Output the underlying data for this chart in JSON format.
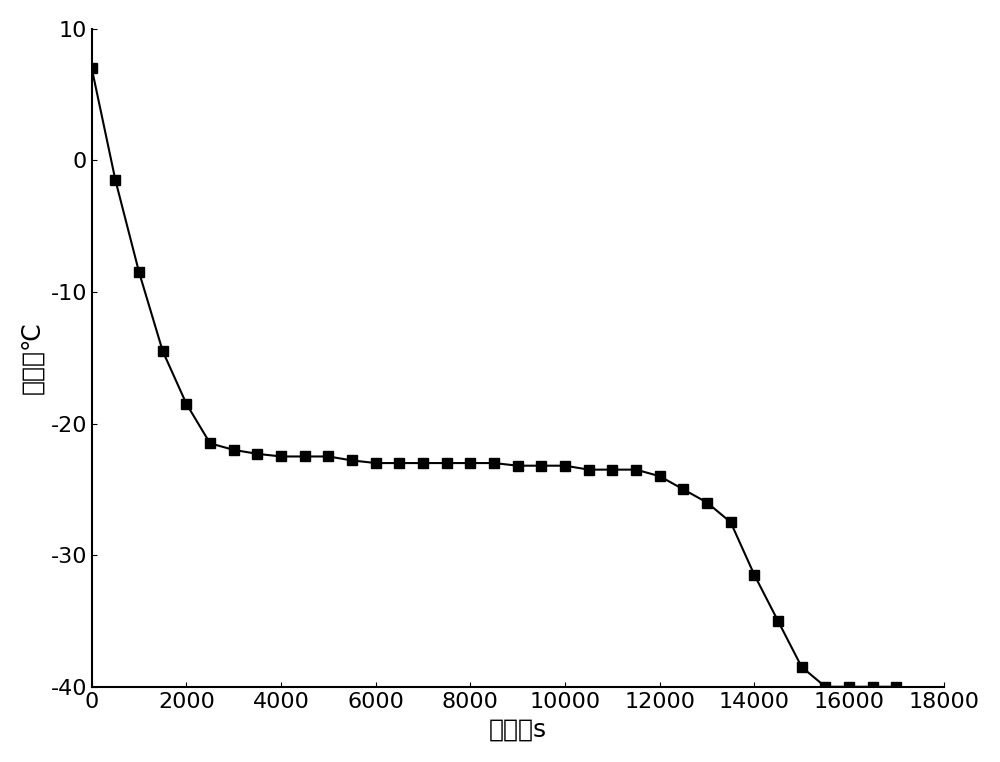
{
  "x": [
    0,
    500,
    1000,
    1500,
    2000,
    2500,
    3000,
    3500,
    4000,
    4500,
    5000,
    5500,
    6000,
    6500,
    7000,
    7500,
    8000,
    8500,
    9000,
    9500,
    10000,
    10500,
    11000,
    11500,
    12000,
    12500,
    13000,
    13500,
    14000,
    14500,
    15000,
    15500,
    16000,
    16500,
    17000
  ],
  "y": [
    7,
    -1.5,
    -8.5,
    -14.5,
    -18.5,
    -21.5,
    -22.0,
    -22.3,
    -22.5,
    -22.5,
    -22.5,
    -22.8,
    -23.0,
    -23.0,
    -23.0,
    -23.0,
    -23.0,
    -23.0,
    -23.2,
    -23.2,
    -23.2,
    -23.5,
    -23.5,
    -23.5,
    -24.0,
    -25.0,
    -26.0,
    -27.5,
    -31.5,
    -35.0,
    -38.5,
    -40.0,
    -40.0,
    -40.0,
    -40.0
  ],
  "xlabel": "时间／s",
  "ylabel": "温度／℃",
  "xlim": [
    0,
    18000
  ],
  "ylim": [
    -40,
    10
  ],
  "xticks": [
    0,
    2000,
    4000,
    6000,
    8000,
    10000,
    12000,
    14000,
    16000,
    18000
  ],
  "yticks": [
    -40,
    -30,
    -20,
    -10,
    0,
    10
  ],
  "line_color": "#000000",
  "marker": "s",
  "marker_size": 7,
  "line_width": 1.5,
  "xlabel_fontsize": 18,
  "ylabel_fontsize": 18,
  "tick_fontsize": 16,
  "background_color": "#ffffff"
}
